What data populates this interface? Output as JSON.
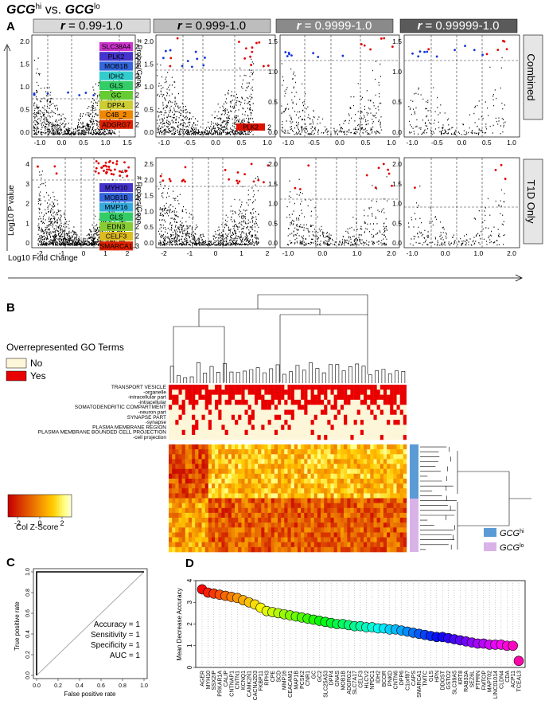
{
  "title": {
    "gcg": "GCG",
    "hi": "hi",
    "vs": " vs. ",
    "lo": "lo"
  },
  "panels": {
    "a": "A",
    "b": "B",
    "c": "C",
    "d": "D"
  },
  "a": {
    "columns": [
      "r = 0.99-1.0",
      "r = 0.999-1.0",
      "r = 0.9999-1.0",
      "r = 0.99999-1.0"
    ],
    "column_colors": [
      "#d9d9d9",
      "#bdbdbd",
      "#8a8a8a",
      "#5a5a5a"
    ],
    "rows": [
      "Combined",
      "T1D Only"
    ],
    "y_axis_label": "Log10 P value",
    "x_axis_label": "Log10 Fold Change",
    "probes_label": "# Probes/Gene",
    "combined_genes": [
      {
        "name": "SLC38A4",
        "count": "2",
        "color": "#cc33cc"
      },
      {
        "name": "PLK2",
        "count": "2",
        "color": "#4433cc"
      },
      {
        "name": "MOB1B",
        "count": "2",
        "color": "#3366dd"
      },
      {
        "name": "IDH2",
        "count": "2",
        "color": "#33cccc"
      },
      {
        "name": "GLS",
        "count": "2",
        "color": "#33cc66"
      },
      {
        "name": "GC",
        "count": "2",
        "color": "#66cc33"
      },
      {
        "name": "DPP4",
        "count": "2",
        "color": "#cccc33"
      },
      {
        "name": "C4B_2",
        "count": "2",
        "color": "#ee8800"
      },
      {
        "name": "ADGRG7",
        "count": "2",
        "color": "#dd2200"
      }
    ],
    "t1d_genes": [
      {
        "name": "MYH10",
        "count": "2",
        "color": "#4433cc"
      },
      {
        "name": "MOB1B",
        "count": "2",
        "color": "#3366dd"
      },
      {
        "name": "MMP16",
        "count": "2",
        "color": "#33aadd"
      },
      {
        "name": "GLS",
        "count": "2",
        "color": "#33cc66"
      },
      {
        "name": "EDN3",
        "count": "2",
        "color": "#88cc33"
      },
      {
        "name": "CELF3",
        "count": "2",
        "color": "#ddbb22"
      },
      {
        "name": "SMARCA1",
        "count": "3",
        "color": "#dd2200"
      }
    ],
    "plk2_label": "PLK2",
    "plk2_count": "2",
    "x_ticks": [
      [
        "-1.0",
        "0.0",
        "0.5",
        "1.0",
        "1.5"
      ],
      [
        "-1.0",
        "-0.5",
        "0.0",
        "0.5",
        "1.0"
      ],
      [
        "-1.0",
        "-0.5",
        "0.0",
        "0.5",
        "1.0"
      ],
      [
        "-1.0",
        "-0.5",
        "0.0",
        "0.5",
        "1.0"
      ],
      [
        "-2",
        "-1",
        "0",
        "1",
        "2"
      ],
      [
        "-2",
        "-1",
        "0",
        "1",
        "2"
      ],
      [
        "-1.0",
        "0.0",
        "1.0",
        "2.0"
      ],
      [
        "-1.0",
        "0.0",
        "1.0",
        "2.0"
      ]
    ],
    "y_ticks": [
      [
        "0.0",
        "0.5",
        "1.0",
        "1.5",
        "2.0"
      ],
      [
        "0.0",
        "0.5",
        "1.0",
        "1.5",
        "2.0"
      ],
      [
        "0.0",
        "0.5",
        "1.0",
        "1.5"
      ],
      [
        "0.0",
        "0.5",
        "1.0",
        "1.5"
      ],
      [
        "0",
        "1",
        "2",
        "3",
        "4"
      ],
      [
        "0.0",
        "0.5",
        "1.0",
        "1.5",
        "2.0",
        "2.5"
      ],
      [
        "0.0",
        "0.5",
        "1.0",
        "1.5",
        "2.0"
      ],
      [
        "0.0",
        "0.5",
        "1.0",
        "1.5",
        "2.0"
      ]
    ]
  },
  "b": {
    "legend_title": "Overrepresented GO Terms",
    "legend_no": "No",
    "legend_yes": "Yes",
    "no_color": "#fdf6d8",
    "yes_color": "#e80000",
    "go_terms": [
      "TRANSPORT VESICLE",
      "-organelle",
      "-intracellular part",
      "-intracellular",
      "SOMATODENDRITIC COMPARTMENT",
      "-neuron part",
      "SYNAPSE PART",
      "-synapse",
      "PLASMA MEMBRANE REGION",
      "PLASMA MEMBRANE BOUNDED CELL PROJECTION",
      "-cell projection"
    ],
    "zscore_label": "Col Z-Score",
    "zscore_ticks": [
      "-2",
      "0",
      "2"
    ],
    "hi_label": "GCG",
    "hi_sup": "hi",
    "lo_label": "GCG",
    "lo_sup": "lo",
    "hi_color": "#5b9bd5",
    "lo_color": "#d9b3e8"
  },
  "c": {
    "accuracy": "Accuracy = 1",
    "sensitivity": "Sensitivity = 1",
    "specificity": "Specificity = 1",
    "auc": "AUC = 1",
    "y_label": "True positive rate",
    "x_label": "False positive rate",
    "x_ticks": [
      "0.0",
      "0.2",
      "0.4",
      "0.6",
      "0.8",
      "1.0"
    ],
    "y_ticks": [
      "0.0",
      "0.2",
      "0.4",
      "0.6",
      "0.8",
      "1.0"
    ]
  },
  "chart_data": {
    "type": "scatter",
    "ylabel": "Mean Decrease Accuracy",
    "ylim": [
      0,
      4
    ],
    "y_ticks": [
      "0",
      "1",
      "2",
      "3",
      "4"
    ],
    "categories": [
      "AGER",
      "MYH10",
      "SSX2IP",
      "PRKAR1A",
      "CALIP",
      "CNTNAP1",
      "CNTN1",
      "KCNQ1",
      "CAMK2N1",
      "CACNA2D3",
      "FKBP11",
      "RPH3",
      "CPE",
      "SCD",
      "MMP16",
      "CEACAM1",
      "MAP1B",
      "PCSK2",
      "CNR1",
      "GC",
      "GC2",
      "SLC25A53",
      "DPP4",
      "GNAS",
      "MOB1B",
      "ADGRG2",
      "SLC7A17",
      "CELF3",
      "HLCV2",
      "NPDC1",
      "IDH2",
      "BCOR",
      "PNKD",
      "CNTN6",
      "DPP6",
      "C1orf87",
      "CAPS",
      "SMARCA1",
      "TMTC",
      "GLS",
      "HPN",
      "DDOST",
      "GSTO2",
      "SLC39A5",
      "KRT8",
      "RAB33A",
      "SEZ6L",
      "PTPRN",
      "FMTOP",
      "MAPT02",
      "LINC01014",
      "CLDN4",
      "CDA",
      "ACP11",
      "TCEAL3"
    ],
    "values": [
      3.6,
      3.45,
      3.4,
      3.35,
      3.3,
      3.25,
      3.2,
      3.1,
      3.0,
      2.9,
      2.75,
      2.6,
      2.55,
      2.5,
      2.45,
      2.4,
      2.35,
      2.3,
      2.25,
      2.2,
      2.15,
      2.1,
      2.05,
      2.0,
      2.0,
      1.95,
      1.9,
      1.9,
      1.85,
      1.85,
      1.8,
      1.8,
      1.75,
      1.75,
      1.7,
      1.65,
      1.6,
      1.55,
      1.5,
      1.45,
      1.4,
      1.4,
      1.35,
      1.3,
      1.25,
      1.2,
      1.15,
      1.1,
      1.1,
      1.05,
      1.05,
      1.05,
      1.0,
      1.0,
      0.3
    ]
  }
}
